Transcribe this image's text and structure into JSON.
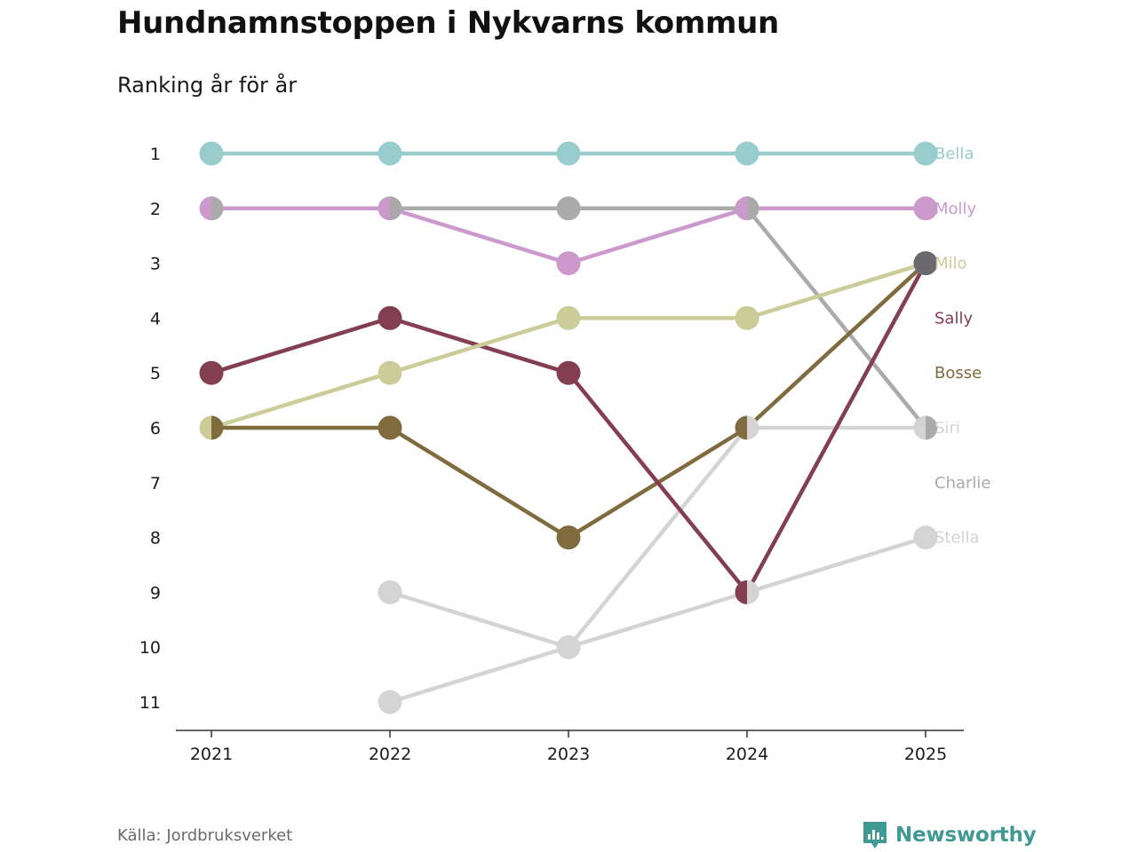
{
  "header": {
    "title": "Hundnamnstoppen i Nykvarns kommun",
    "subtitle": "Ranking år för år"
  },
  "footer": {
    "source": "Källa: Jordbruksverket",
    "brand": "Newsworthy",
    "brand_color": "#3f9a96",
    "brand_icon": "bar-chart-speech-bubble-icon"
  },
  "chart_data": {
    "type": "line",
    "subtype": "bump",
    "x": [
      "2021",
      "2022",
      "2023",
      "2024",
      "2025"
    ],
    "y_ticks": [
      "1",
      "2",
      "3",
      "4",
      "5",
      "6",
      "7",
      "8",
      "9",
      "10",
      "11"
    ],
    "ylim": [
      1,
      11
    ],
    "y_reversed": true,
    "grid": false,
    "legend": "right-end labels",
    "series": [
      {
        "name": "Bella",
        "color": "#99cccc",
        "values": [
          1,
          1,
          1,
          1,
          1
        ]
      },
      {
        "name": "Molly",
        "color": "#cc99cc",
        "values": [
          2,
          2,
          3,
          2,
          2
        ]
      },
      {
        "name": "Milo",
        "color": "#cccc99",
        "values": [
          6,
          5,
          4,
          4,
          3
        ]
      },
      {
        "name": "Sally",
        "color": "#833e51",
        "values": [
          5,
          4,
          5,
          9,
          3
        ]
      },
      {
        "name": "Bosse",
        "color": "#7f6b3e",
        "values": [
          6,
          6,
          8,
          6,
          3
        ]
      },
      {
        "name": "Siri",
        "color": "#d4d4d4",
        "values": [
          null,
          11,
          10,
          6,
          6
        ]
      },
      {
        "name": "Charlie",
        "color": "#aaaaaa",
        "values": [
          2,
          2,
          2,
          2,
          6
        ]
      },
      {
        "name": "Stella",
        "color": "#d4d4d4",
        "values": [
          null,
          9,
          10,
          9,
          8
        ]
      }
    ]
  }
}
